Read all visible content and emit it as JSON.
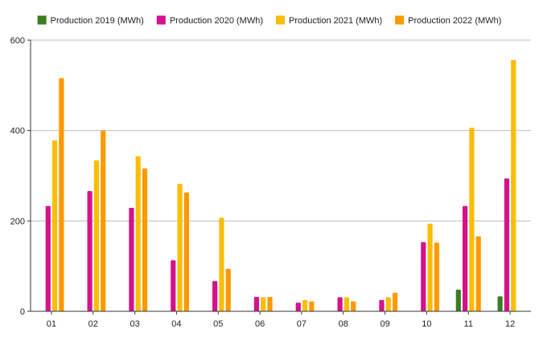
{
  "chart_data": {
    "type": "bar",
    "categories": [
      "01",
      "02",
      "03",
      "04",
      "05",
      "06",
      "07",
      "08",
      "09",
      "10",
      "11",
      "12"
    ],
    "series": [
      {
        "name": "Production 2019 (MWh)",
        "color": "#3a7d1e",
        "values": [
          0,
          0,
          0,
          0,
          0,
          0,
          0,
          0,
          0,
          0,
          48,
          33
        ]
      },
      {
        "name": "Production 2020 (MWh)",
        "color": "#d4128c",
        "values": [
          233,
          266,
          229,
          113,
          67,
          32,
          19,
          31,
          25,
          153,
          233,
          294
        ]
      },
      {
        "name": "Production 2021 (MWh)",
        "color": "#fbbd05",
        "values": [
          378,
          334,
          343,
          282,
          207,
          31,
          25,
          31,
          31,
          194,
          406,
          556
        ]
      },
      {
        "name": "Production 2022 (MWh)",
        "color": "#ff9900",
        "values": [
          516,
          400,
          316,
          263,
          94,
          32,
          22,
          22,
          41,
          152,
          166,
          0
        ]
      }
    ],
    "y_ticks": [
      "0",
      "200",
      "400",
      "600"
    ],
    "ylim": [
      0,
      600
    ],
    "grid": true,
    "legend_position": "top"
  }
}
